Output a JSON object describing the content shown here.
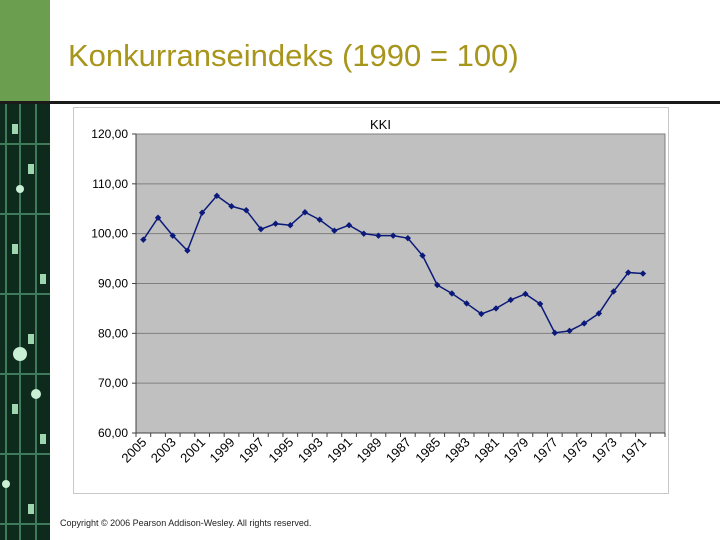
{
  "slide": {
    "title": "Konkurranseindeks (1990 = 100)",
    "copyright": "Copyright © 2006 Pearson Addison-Wesley. All rights reserved."
  },
  "chart_data": {
    "type": "line",
    "title": "KKI",
    "xlabel": "",
    "ylabel": "",
    "categories": [
      2005,
      2004,
      2003,
      2002,
      2001,
      2000,
      1999,
      1998,
      1997,
      1996,
      1995,
      1994,
      1993,
      1992,
      1991,
      1990,
      1989,
      1988,
      1987,
      1986,
      1985,
      1984,
      1983,
      1982,
      1981,
      1980,
      1979,
      1978,
      1977,
      1976,
      1975,
      1974,
      1973,
      1972,
      1971,
      1970
    ],
    "x_tick_labels": [
      "2005",
      "2003",
      "2001",
      "1999",
      "1997",
      "1995",
      "1993",
      "1991",
      "1989",
      "1987",
      "1985",
      "1983",
      "1981",
      "1979",
      "1977",
      "1975",
      "1973",
      "1971"
    ],
    "y_tick_labels": [
      "120,00",
      "110,00",
      "100,00",
      "90,00",
      "80,00",
      "70,00",
      "60,00"
    ],
    "ylim": [
      60,
      120
    ],
    "y_ticks": [
      120,
      110,
      100,
      90,
      80,
      70,
      60
    ],
    "grid": true,
    "series": [
      {
        "name": "",
        "values": [
          98.8,
          103.2,
          99.6,
          96.6,
          104.2,
          107.6,
          105.5,
          104.7,
          100.9,
          102.0,
          101.7,
          104.3,
          102.8,
          100.6,
          101.7,
          100.0,
          99.6,
          99.6,
          99.1,
          95.6,
          89.7,
          88.0,
          86.0,
          83.9,
          85.0,
          86.7,
          87.9,
          85.9,
          80.1,
          80.5,
          82.0,
          84.0,
          88.4,
          92.2,
          92.0,
          null
        ]
      }
    ],
    "colors": {
      "plot_area": "#c0c0c0",
      "line": "#0b1a7a",
      "grid": "#7f7f7f"
    }
  }
}
